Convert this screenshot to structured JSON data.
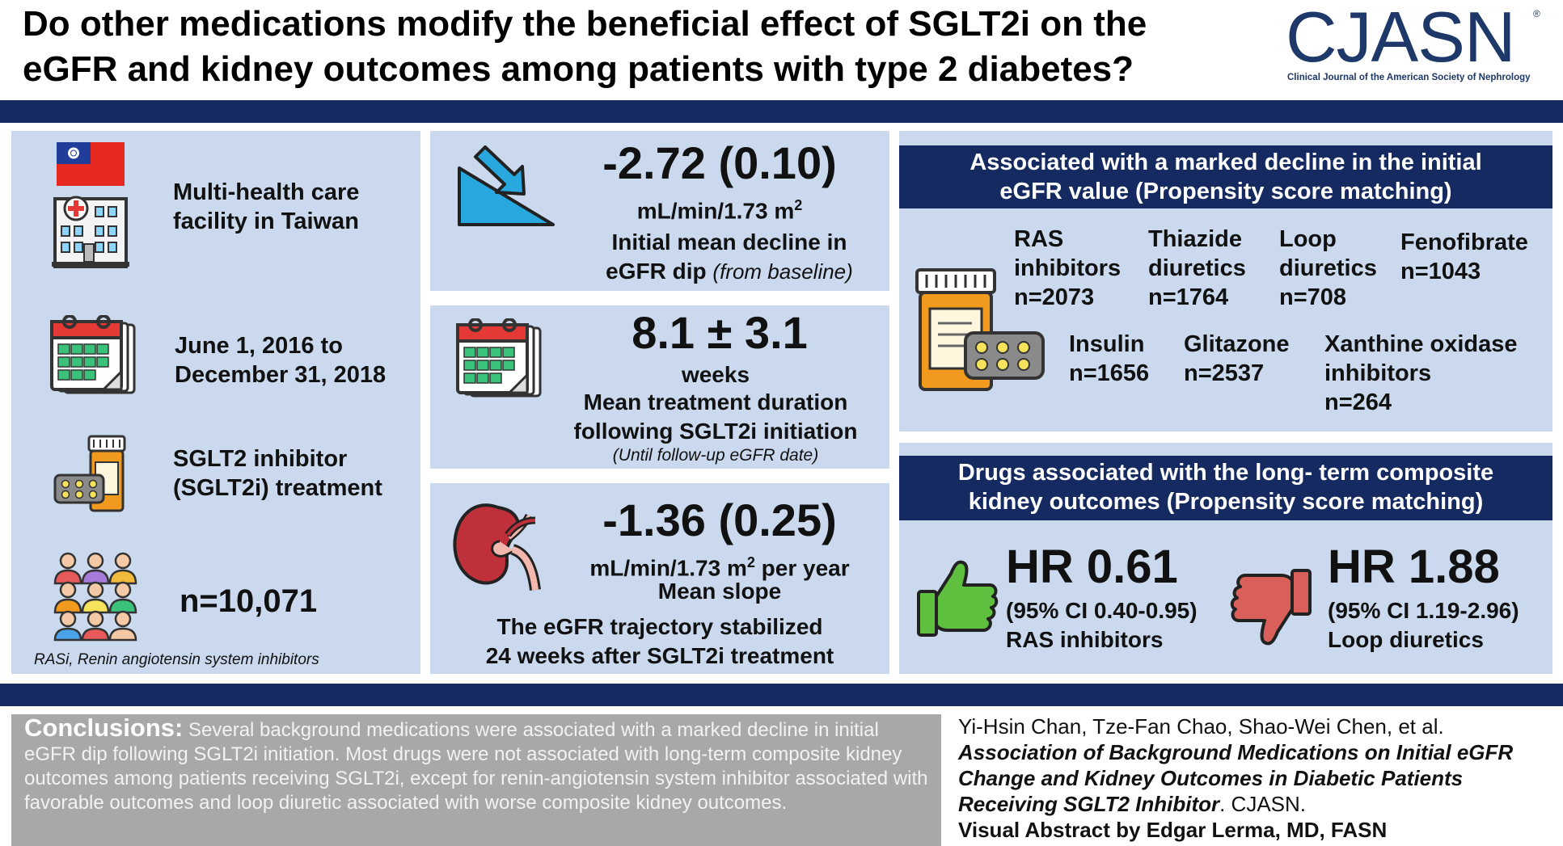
{
  "header": {
    "title_line1": "Do other medications modify the beneficial effect of SGLT2i on the",
    "title_line2": "eGFR and kidney outcomes among patients with type 2 diabetes?",
    "logo": "CJASN",
    "logo_reg": "®",
    "logo_subtitle": "Clinical Journal of the American Society of Nephrology"
  },
  "left": {
    "facility_l1": "Multi-health care",
    "facility_l2": "facility in Taiwan",
    "dates_l1": "June 1, 2016 to",
    "dates_l2": "December 31, 2018",
    "treatment_l1": "SGLT2 inhibitor",
    "treatment_l2": "(SGLT2i) treatment",
    "n_total": "n=10,071",
    "abbrev": "RASi, Renin angiotensin system inhibitors"
  },
  "center": {
    "decline_value": "-2.72 (0.10)",
    "decline_unit": "mL/min/1.73 m",
    "decline_sup": "2",
    "decline_desc_l1": "Initial mean decline in",
    "decline_desc_l2": "eGFR dip",
    "decline_desc_note": "(from baseline)",
    "duration_value": "8.1 ± 3.1",
    "duration_unit": "weeks",
    "duration_desc_l1": "Mean treatment duration",
    "duration_desc_l2": "following SGLT2i initiation",
    "duration_note": "(Until follow-up eGFR date)",
    "slope_value": "-1.36 (0.25)",
    "slope_unit": "mL/min/1.73 m",
    "slope_sup": "2",
    "slope_unit_tail": " per year",
    "slope_label": "Mean slope",
    "slope_desc_l1": "The eGFR trajectory stabilized",
    "slope_desc_l2": "24 weeks after SGLT2i treatment"
  },
  "right": {
    "decline_header_l1": "Associated with a marked decline in the initial",
    "decline_header_l2": "eGFR value (Propensity score matching)",
    "drugs": [
      {
        "l1": "RAS",
        "l2": "inhibitors",
        "l3": "n=2073"
      },
      {
        "l1": "Thiazide",
        "l2": "diuretics",
        "l3": "n=1764"
      },
      {
        "l1": "Loop",
        "l2": "diuretics",
        "l3": "n=708"
      },
      {
        "l1": "Fenofibrate",
        "l2": "n=1043",
        "l3": ""
      },
      {
        "l1": "Insulin",
        "l2": "n=1656",
        "l3": ""
      },
      {
        "l1": "Glitazone",
        "l2": "n=2537",
        "l3": ""
      },
      {
        "l1": "Xanthine oxidase",
        "l2": "inhibitors",
        "l3": "n=264"
      }
    ],
    "outcome_header_l1": "Drugs associated with the long- term composite",
    "outcome_header_l2": "kidney outcomes (Propensity score matching)",
    "hr_good": "HR 0.61",
    "hr_good_ci": "(95% CI 0.40-0.95)",
    "hr_good_drug": "RAS inhibitors",
    "hr_bad": "HR 1.88",
    "hr_bad_ci": "(95% CI 1.19-2.96)",
    "hr_bad_drug": "Loop diuretics"
  },
  "footer": {
    "conclusions_label": "Conclusions:",
    "conclusions_text": " Several background medications were associated with a marked decline in initial eGFR dip following SGLT2i initiation. Most drugs were not associated with long-term composite kidney outcomes among patients receiving SGLT2i, except for renin-angiotensin system inhibitor associated with favorable outcomes and loop diuretic associated with worse composite kidney outcomes.",
    "authors": "Yi-Hsin Chan, Tze-Fan Chao, Shao-Wei Chen, et al.",
    "article_title": "Association of Background Medications on Initial eGFR Change and Kidney Outcomes in Diabetic Patients Receiving SGLT2 Inhibitor",
    "journal": ". CJASN.",
    "visual_abstract": "Visual Abstract by Edgar Lerma, MD, FASN"
  },
  "icons": [
    "taiwan-flag-icon",
    "hospital-icon",
    "calendar-icon",
    "pill-bottle-icon",
    "people-group-icon",
    "decline-arrow-icon",
    "kidney-icon",
    "thumbs-up-icon",
    "thumbs-down-icon"
  ],
  "colors": {
    "navy": "#152a61",
    "panel": "#cad9ee",
    "thumb_up": "#5fbf3f",
    "thumb_down": "#d9605a",
    "pill_orange": "#f29a1e",
    "arrow_blue": "#29a8e0"
  }
}
